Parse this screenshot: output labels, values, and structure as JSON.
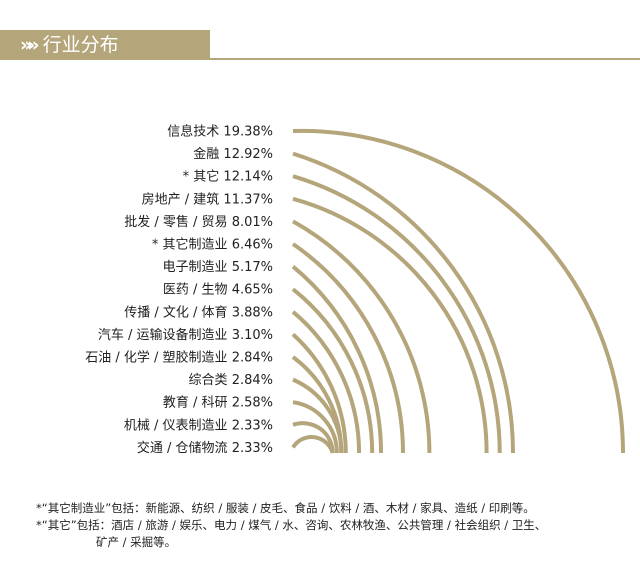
{
  "header": {
    "title": "行业分布",
    "chevrons": "»»",
    "band_color": "#b5a57a"
  },
  "chart_data": {
    "type": "bar",
    "categories": [
      "信息技术",
      "金融",
      "* 其它",
      "房地产 / 建筑",
      "批发 / 零售 / 贸易",
      "* 其它制造业",
      "电子制造业",
      "医药 / 生物",
      "传播 / 文化 / 体育",
      "汽车 / 运输设备制造业",
      "石油 / 化学 / 塑胶制造业",
      "综合类",
      "教育 / 科研",
      "机械 / 仪表制造业",
      "交通 / 仓储物流"
    ],
    "values": [
      19.38,
      12.92,
      12.14,
      11.37,
      8.01,
      6.46,
      5.17,
      4.65,
      3.88,
      3.1,
      2.84,
      2.84,
      2.58,
      2.33,
      2.33
    ],
    "value_labels": [
      "19.38%",
      "12.92%",
      "12.14%",
      "11.37%",
      "8.01%",
      "6.46%",
      "5.17%",
      "4.65%",
      "3.88%",
      "3.10%",
      "2.84%",
      "2.84%",
      "2.58%",
      "2.33%",
      "2.33%"
    ],
    "unit": "%",
    "bar_color": "#b5a57a",
    "bar_shape": "curved-arc"
  },
  "footnotes": {
    "line1": "*“其它制造业”包括：新能源、纺织 / 服装 / 皮毛、食品 / 饮料 / 酒、木材 / 家具、造纸 / 印刷等。",
    "line2": "*“其它”包括：酒店 / 旅游 / 娱乐、电力 / 煤气 / 水、咨询、农林牧渔、公共管理 / 社会组织 / 卫生、",
    "line3": "矿产 / 采掘等。"
  }
}
